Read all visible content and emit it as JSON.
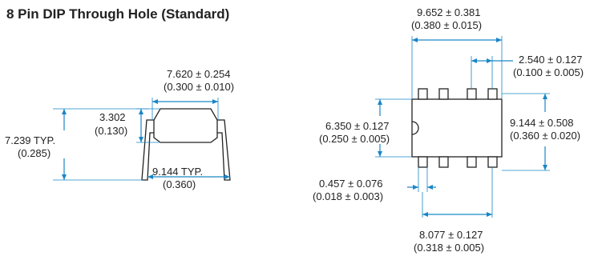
{
  "title": "8 Pin DIP Through Hole (Standard)",
  "side_view": {
    "body_width": {
      "mm": "7.620 ± 0.254",
      "in": "(0.300 ± 0.010)"
    },
    "lead_length": {
      "mm": "3.302",
      "in": "(0.130)"
    },
    "height": {
      "mm": "7.239 TYP.",
      "in": "(0.285)"
    },
    "lead_spread": {
      "mm": "9.144 TYP.",
      "in": "(0.360)"
    }
  },
  "top_view": {
    "body_length": {
      "mm": "9.652 ± 0.381",
      "in": "(0.380 ± 0.015)"
    },
    "pitch": {
      "mm": "2.540 ± 0.127",
      "in": "(0.100 ± 0.005)"
    },
    "row_spacing": {
      "mm": "9.144 ± 0.508",
      "in": "(0.360 ± 0.020)"
    },
    "body_width": {
      "mm": "6.350 ± 0.127",
      "in": "(0.250 ± 0.005)"
    },
    "lead_width": {
      "mm": "0.457 ± 0.076",
      "in": "(0.018 ± 0.003)"
    },
    "pin_row_length": {
      "mm": "8.077 ± 0.127",
      "in": "(0.318 ± 0.005)"
    }
  },
  "colors": {
    "dimension": "#1a86c6",
    "outline": "#222222"
  }
}
